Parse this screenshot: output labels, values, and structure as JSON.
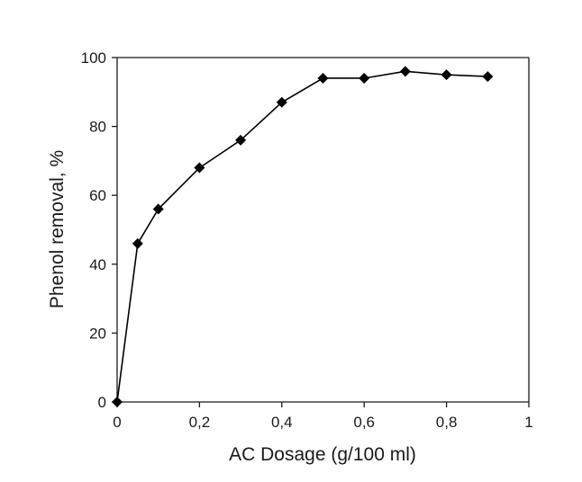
{
  "chart_data": {
    "type": "line",
    "title": "",
    "xlabel": "AC Dosage (g/100 ml)",
    "ylabel": "Phenol removal, %",
    "xlim": [
      0,
      1
    ],
    "ylim": [
      0,
      100
    ],
    "x_ticks": [
      0,
      0.2,
      0.4,
      0.6,
      0.8,
      1
    ],
    "x_tick_labels": [
      "0",
      "0,2",
      "0,4",
      "0,6",
      "0,8",
      "1"
    ],
    "y_ticks": [
      0,
      20,
      40,
      60,
      80,
      100
    ],
    "y_tick_labels": [
      "0",
      "20",
      "40",
      "60",
      "80",
      "100"
    ],
    "grid": false,
    "marker": "diamond",
    "line_color": "#000000",
    "series": [
      {
        "x": [
          0,
          0.05,
          0.1,
          0.2,
          0.3,
          0.4,
          0.5,
          0.6,
          0.7,
          0.8,
          0.9
        ],
        "y": [
          0,
          46,
          56,
          68,
          76,
          87,
          94,
          94,
          96,
          95,
          94.5
        ]
      }
    ]
  }
}
